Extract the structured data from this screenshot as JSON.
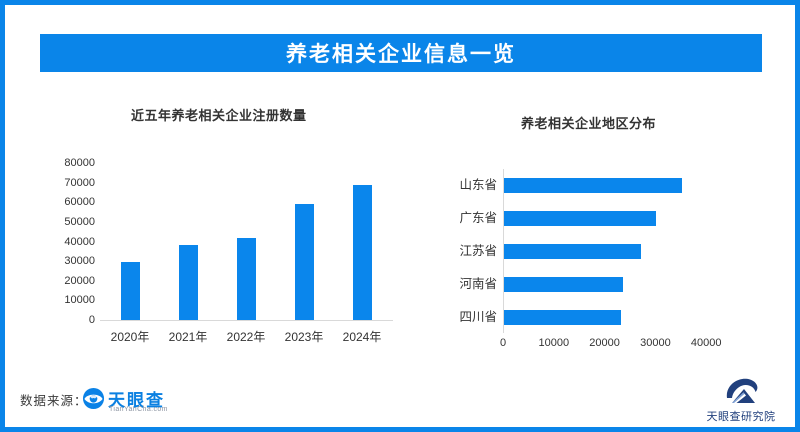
{
  "page": {
    "title": "养老相关企业信息一览",
    "source_label": "数据来源：",
    "brand": {
      "name": "天眼查",
      "domain": "TianYanCha.com"
    },
    "institute": "天眼查研究院"
  },
  "colors": {
    "accent": "#0a85e9",
    "bar": "#0a86ec",
    "text": "#333333",
    "axis_line": "#d9d9d9",
    "brand_blue": "#0b80e1",
    "institute_navy": "#21407d"
  },
  "icons": {
    "brand_logo": "tianyancha-eye-icon",
    "institute_logo": "tianyancha-research-wave-icon"
  },
  "chart_data": [
    {
      "type": "bar",
      "orientation": "vertical",
      "title": "近五年养老相关企业注册数量",
      "categories": [
        "2020年",
        "2021年",
        "2022年",
        "2023年",
        "2024年"
      ],
      "values": [
        29500,
        38000,
        42000,
        59000,
        69000
      ],
      "xlabel": "",
      "ylabel": "",
      "ylim": [
        0,
        80000
      ],
      "yticks": [
        0,
        10000,
        20000,
        30000,
        40000,
        50000,
        60000,
        70000,
        80000
      ],
      "grid": false,
      "legend": false
    },
    {
      "type": "bar",
      "orientation": "horizontal",
      "title": "养老相关企业地区分布",
      "categories": [
        "山东省",
        "广东省",
        "江苏省",
        "河南省",
        "四川省"
      ],
      "values": [
        35000,
        30000,
        27000,
        23500,
        23000
      ],
      "xlabel": "",
      "ylabel": "",
      "xlim": [
        0,
        45000
      ],
      "xticks": [
        0,
        10000,
        20000,
        30000,
        40000
      ],
      "grid": false,
      "legend": false
    }
  ]
}
